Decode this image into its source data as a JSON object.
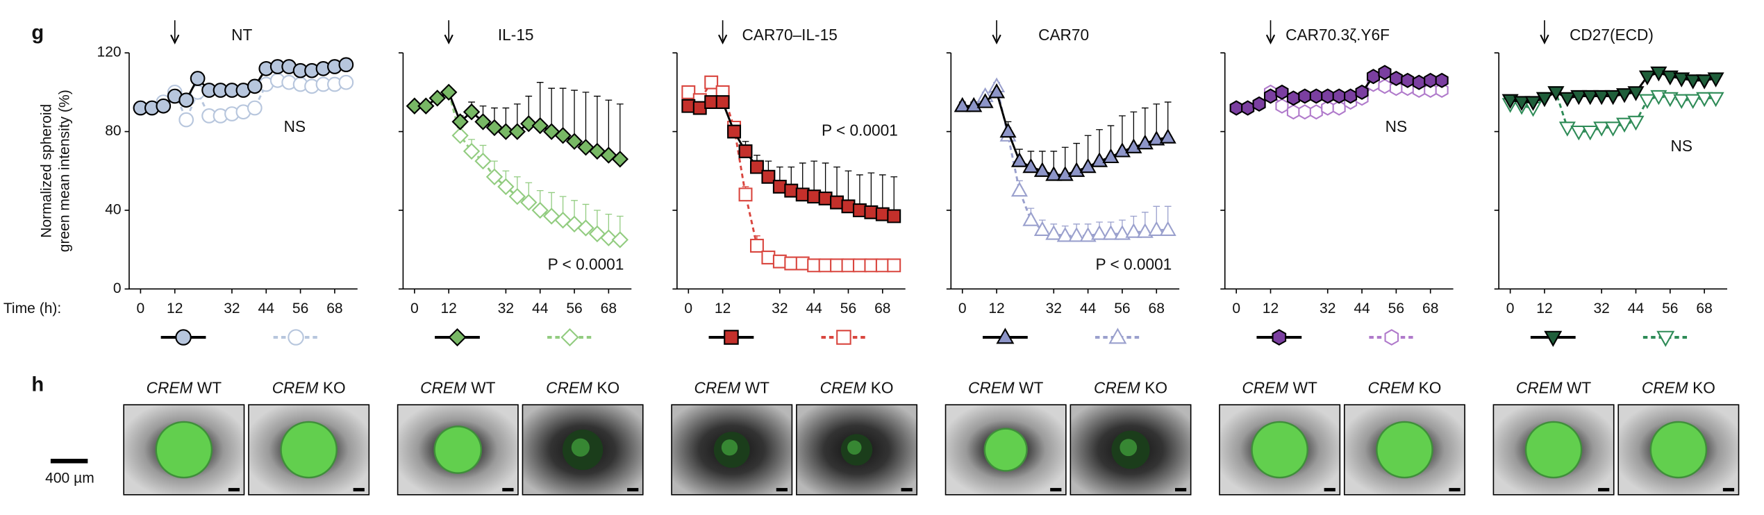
{
  "figure": {
    "panel_g": "g",
    "panel_h": "h",
    "time_label": "Time (h):",
    "y_label": [
      "Normalized spheroid",
      "green mean intensity (%)"
    ],
    "scale_bar": "400 µm"
  },
  "chart_data": [
    {
      "type": "line",
      "title": "NT",
      "annotation": "NS",
      "arrow_x": 12,
      "x": [
        0,
        4,
        8,
        12,
        16,
        20,
        24,
        28,
        32,
        36,
        40,
        44,
        48,
        52,
        56,
        60,
        64,
        68,
        72
      ],
      "xlim": [
        -4,
        76
      ],
      "xticks": [
        0,
        12,
        32,
        44,
        56,
        68
      ],
      "ylim": [
        0,
        120
      ],
      "yticks": [
        0,
        40,
        80,
        120
      ],
      "series": [
        {
          "color": "#b7c6dd",
          "line_color": "#000000",
          "marker": "circle",
          "filled": true,
          "linestyle": "solid",
          "values": [
            92,
            92,
            93,
            98,
            96,
            107,
            101,
            101,
            101,
            101,
            103,
            112,
            113,
            113,
            111,
            111,
            112,
            113,
            114
          ]
        },
        {
          "color": "#b7c6dd",
          "line_color": "#b7c6dd",
          "marker": "circle",
          "filled": false,
          "linestyle": "dashed",
          "values": [
            92,
            92,
            95,
            100,
            86,
            100,
            88,
            88,
            89,
            90,
            92,
            104,
            106,
            105,
            104,
            103,
            104,
            104,
            105
          ]
        }
      ]
    },
    {
      "type": "line",
      "title": "IL-15",
      "annotation": "P < 0.0001",
      "arrow_x": 12,
      "x": [
        0,
        4,
        8,
        12,
        16,
        20,
        24,
        28,
        32,
        36,
        40,
        44,
        48,
        52,
        56,
        60,
        64,
        68,
        72
      ],
      "xlim": [
        -4,
        76
      ],
      "xticks": [
        0,
        12,
        32,
        44,
        56,
        68
      ],
      "ylim": [
        0,
        120
      ],
      "yticks": [
        0,
        40,
        80,
        120
      ],
      "series": [
        {
          "color": "#78b865",
          "line_color": "#000000",
          "marker": "diamond",
          "filled": true,
          "linestyle": "solid",
          "values": [
            93,
            93,
            97,
            100,
            85,
            90,
            85,
            82,
            80,
            80,
            84,
            83,
            80,
            78,
            75,
            72,
            70,
            68,
            66
          ],
          "errors": [
            1,
            1,
            1,
            1,
            3,
            5,
            8,
            10,
            12,
            14,
            14,
            22,
            22,
            24,
            26,
            28,
            28,
            28,
            28
          ]
        },
        {
          "color": "#92cc80",
          "line_color": "#92cc80",
          "marker": "diamond",
          "filled": false,
          "linestyle": "dashed",
          "values": [
            93,
            93,
            97,
            100,
            78,
            70,
            65,
            57,
            52,
            47,
            44,
            40,
            37,
            35,
            33,
            31,
            28,
            26,
            25
          ],
          "errors": [
            1,
            1,
            1,
            1,
            4,
            6,
            8,
            8,
            8,
            10,
            10,
            10,
            12,
            12,
            12,
            12,
            12,
            12,
            12
          ]
        }
      ]
    },
    {
      "type": "line",
      "title": "CAR70–IL-15",
      "annotation": "P < 0.0001",
      "arrow_x": 12,
      "x": [
        0,
        4,
        8,
        12,
        16,
        20,
        24,
        28,
        32,
        36,
        40,
        44,
        48,
        52,
        56,
        60,
        64,
        68,
        72
      ],
      "xlim": [
        -4,
        76
      ],
      "xticks": [
        0,
        12,
        32,
        44,
        56,
        68
      ],
      "ylim": [
        0,
        120
      ],
      "yticks": [
        0,
        40,
        80,
        120
      ],
      "series": [
        {
          "color": "#c4302b",
          "line_color": "#000000",
          "marker": "square",
          "filled": true,
          "linestyle": "solid",
          "values": [
            93,
            92,
            95,
            95,
            80,
            70,
            62,
            57,
            52,
            50,
            48,
            47,
            46,
            44,
            42,
            40,
            39,
            38,
            37
          ],
          "errors": [
            2,
            2,
            2,
            2,
            4,
            5,
            6,
            8,
            10,
            12,
            16,
            18,
            18,
            18,
            18,
            18,
            20,
            20,
            20
          ]
        },
        {
          "color": "#d9463f",
          "line_color": "#d9463f",
          "marker": "square",
          "filled": false,
          "linestyle": "dashed",
          "values": [
            100,
            96,
            105,
            100,
            82,
            48,
            22,
            16,
            14,
            13,
            13,
            12,
            12,
            12,
            12,
            12,
            12,
            12,
            12
          ],
          "errors": [
            2,
            2,
            2,
            2,
            3,
            4,
            5,
            3,
            2,
            2,
            1,
            1,
            1,
            1,
            1,
            1,
            1,
            1,
            1
          ]
        }
      ]
    },
    {
      "type": "line",
      "title": "CAR70",
      "annotation": "P < 0.0001",
      "arrow_x": 12,
      "x": [
        0,
        4,
        8,
        12,
        16,
        20,
        24,
        28,
        32,
        36,
        40,
        44,
        48,
        52,
        56,
        60,
        64,
        68,
        72
      ],
      "xlim": [
        -4,
        76
      ],
      "xticks": [
        0,
        12,
        32,
        44,
        56,
        68
      ],
      "ylim": [
        0,
        120
      ],
      "yticks": [
        0,
        40,
        80,
        120
      ],
      "series": [
        {
          "color": "#8d95c8",
          "line_color": "#000000",
          "marker": "triangle",
          "filled": true,
          "linestyle": "solid",
          "values": [
            93,
            93,
            95,
            100,
            80,
            65,
            62,
            60,
            58,
            58,
            60,
            62,
            65,
            67,
            70,
            72,
            74,
            76,
            77
          ],
          "errors": [
            2,
            2,
            2,
            2,
            5,
            6,
            8,
            10,
            12,
            14,
            14,
            16,
            16,
            16,
            18,
            18,
            18,
            18,
            18
          ]
        },
        {
          "color": "#9aa0cd",
          "line_color": "#9aa0cd",
          "marker": "triangle",
          "filled": false,
          "linestyle": "dashed",
          "values": [
            93,
            93,
            98,
            103,
            78,
            50,
            35,
            30,
            28,
            27,
            27,
            27,
            28,
            28,
            28,
            29,
            29,
            30,
            30
          ],
          "errors": [
            2,
            2,
            2,
            2,
            4,
            5,
            6,
            5,
            5,
            5,
            6,
            6,
            6,
            6,
            7,
            8,
            10,
            12,
            12
          ]
        }
      ]
    },
    {
      "type": "line",
      "title": "CAR70.3ζ.Y6F",
      "annotation": "NS",
      "arrow_x": 12,
      "x": [
        0,
        4,
        8,
        12,
        16,
        20,
        24,
        28,
        32,
        36,
        40,
        44,
        48,
        52,
        56,
        60,
        64,
        68,
        72
      ],
      "xlim": [
        -4,
        76
      ],
      "xticks": [
        0,
        12,
        32,
        44,
        56,
        68
      ],
      "ylim": [
        0,
        120
      ],
      "yticks": [
        0,
        40,
        80,
        120
      ],
      "series": [
        {
          "color": "#7b3fa0",
          "line_color": "#000000",
          "marker": "hexagon",
          "filled": true,
          "linestyle": "solid",
          "values": [
            92,
            92,
            94,
            98,
            100,
            97,
            98,
            98,
            98,
            98,
            98,
            100,
            108,
            110,
            107,
            106,
            105,
            106,
            106
          ]
        },
        {
          "color": "#b07acb",
          "line_color": "#b07acb",
          "marker": "hexagon",
          "filled": false,
          "linestyle": "dashed",
          "values": [
            92,
            92,
            94,
            100,
            93,
            90,
            90,
            90,
            92,
            92,
            95,
            97,
            104,
            103,
            102,
            102,
            101,
            101,
            101
          ]
        }
      ]
    },
    {
      "type": "line",
      "title": "CD27(ECD)",
      "annotation": "NS",
      "arrow_x": 12,
      "x": [
        0,
        4,
        8,
        12,
        16,
        20,
        24,
        28,
        32,
        36,
        40,
        44,
        48,
        52,
        56,
        60,
        64,
        68,
        72
      ],
      "xlim": [
        -4,
        76
      ],
      "xticks": [
        0,
        12,
        32,
        44,
        56,
        68
      ],
      "ylim": [
        0,
        120
      ],
      "yticks": [
        0,
        40,
        80,
        120
      ],
      "series": [
        {
          "color": "#1f5e3a",
          "line_color": "#000000",
          "marker": "triangle-down",
          "filled": true,
          "linestyle": "solid",
          "values": [
            96,
            95,
            95,
            97,
            100,
            97,
            98,
            98,
            98,
            98,
            99,
            100,
            108,
            110,
            108,
            107,
            106,
            106,
            107
          ]
        },
        {
          "color": "#2e8b57",
          "line_color": "#2e8b57",
          "marker": "triangle-down",
          "filled": false,
          "linestyle": "dashed",
          "values": [
            94,
            93,
            92,
            97,
            100,
            82,
            80,
            80,
            82,
            82,
            84,
            85,
            96,
            98,
            97,
            96,
            96,
            97,
            97
          ]
        }
      ]
    }
  ],
  "images": [
    {
      "gene": "CREM",
      "genotype": "WT"
    },
    {
      "gene": "CREM",
      "genotype": "KO"
    },
    {
      "gene": "CREM",
      "genotype": "WT"
    },
    {
      "gene": "CREM",
      "genotype": "KO"
    },
    {
      "gene": "CREM",
      "genotype": "WT"
    },
    {
      "gene": "CREM",
      "genotype": "KO"
    },
    {
      "gene": "CREM",
      "genotype": "WT"
    },
    {
      "gene": "CREM",
      "genotype": "KO"
    },
    {
      "gene": "CREM",
      "genotype": "WT"
    },
    {
      "gene": "CREM",
      "genotype": "KO"
    },
    {
      "gene": "CREM",
      "genotype": "WT"
    },
    {
      "gene": "CREM",
      "genotype": "KO"
    }
  ]
}
